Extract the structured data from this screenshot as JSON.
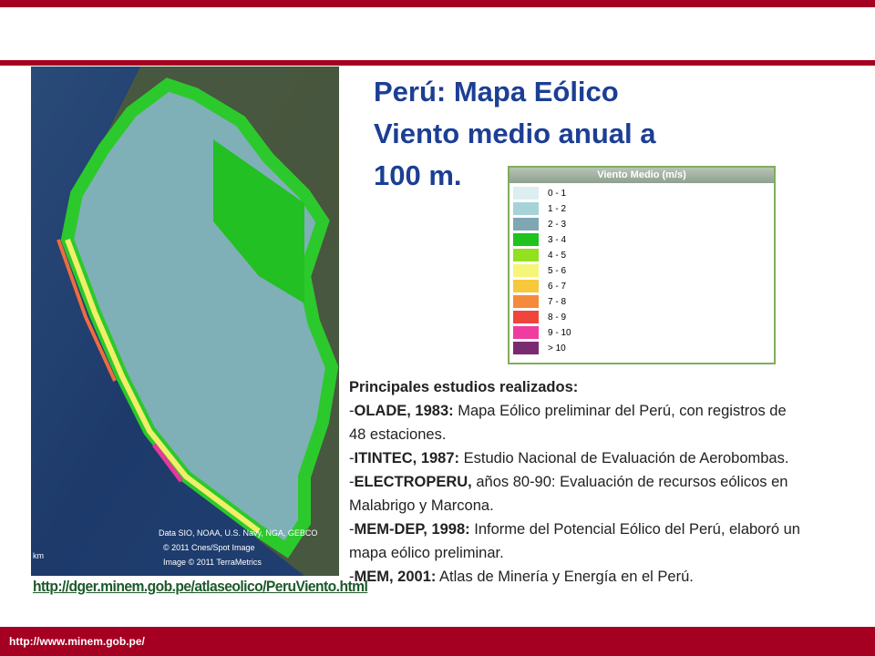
{
  "title": [
    "Perú: Mapa Eólico",
    "Viento medio anual a",
    "100 m."
  ],
  "legend": {
    "title": "Viento Medio (m/s)",
    "items": [
      {
        "label": "0 - 1",
        "color": "#dbeef0"
      },
      {
        "label": "1 - 2",
        "color": "#a6d3d8"
      },
      {
        "label": "2 - 3",
        "color": "#7ea7b3"
      },
      {
        "label": "3 - 4",
        "color": "#1ec31e"
      },
      {
        "label": "4 - 5",
        "color": "#92e01e"
      },
      {
        "label": "5 - 6",
        "color": "#f5f57a"
      },
      {
        "label": "6 - 7",
        "color": "#f7c83a"
      },
      {
        "label": "7 - 8",
        "color": "#f58a3c"
      },
      {
        "label": "8 - 9",
        "color": "#f0453c"
      },
      {
        "label": "9 - 10",
        "color": "#f03ca0"
      },
      {
        "label": "> 10",
        "color": "#7a2a6e"
      }
    ]
  },
  "map": {
    "credits": [
      "Data SIO, NOAA, U.S. Navy, NGA, GEBCO",
      "© 2011 Cnes/Spot Image",
      "Image © 2011 TerraMetrics"
    ],
    "scale": "km",
    "link": "http://dger.minem.gob.pe/atlaseolico/PeruViento.html"
  },
  "studies": {
    "heading": "Principales estudios realizados:",
    "items": [
      {
        "marker": "-",
        "name": "OLADE, 1983:",
        "text": " Mapa Eólico preliminar del Perú, con registros de 48 estaciones."
      },
      {
        "marker": "-",
        "name": "ITINTEC, 1987:",
        "text": " Estudio Nacional de Evaluación de Aerobombas."
      },
      {
        "marker": "-",
        "name": "ELECTROPERU,",
        "text": " años 80-90: Evaluación de recursos eólicos en Malabrigo y Marcona."
      },
      {
        "marker": "-",
        "name": "MEM-DEP, 1998:",
        "text": " Informe del Potencial Eólico del Perú, elaboró un mapa eólico preliminar."
      },
      {
        "marker": "-",
        "name": "MEM, 2001:",
        "text": " Atlas de Minería y Energía en el Perú."
      }
    ]
  },
  "footer": "http://www.minem.gob.pe/"
}
